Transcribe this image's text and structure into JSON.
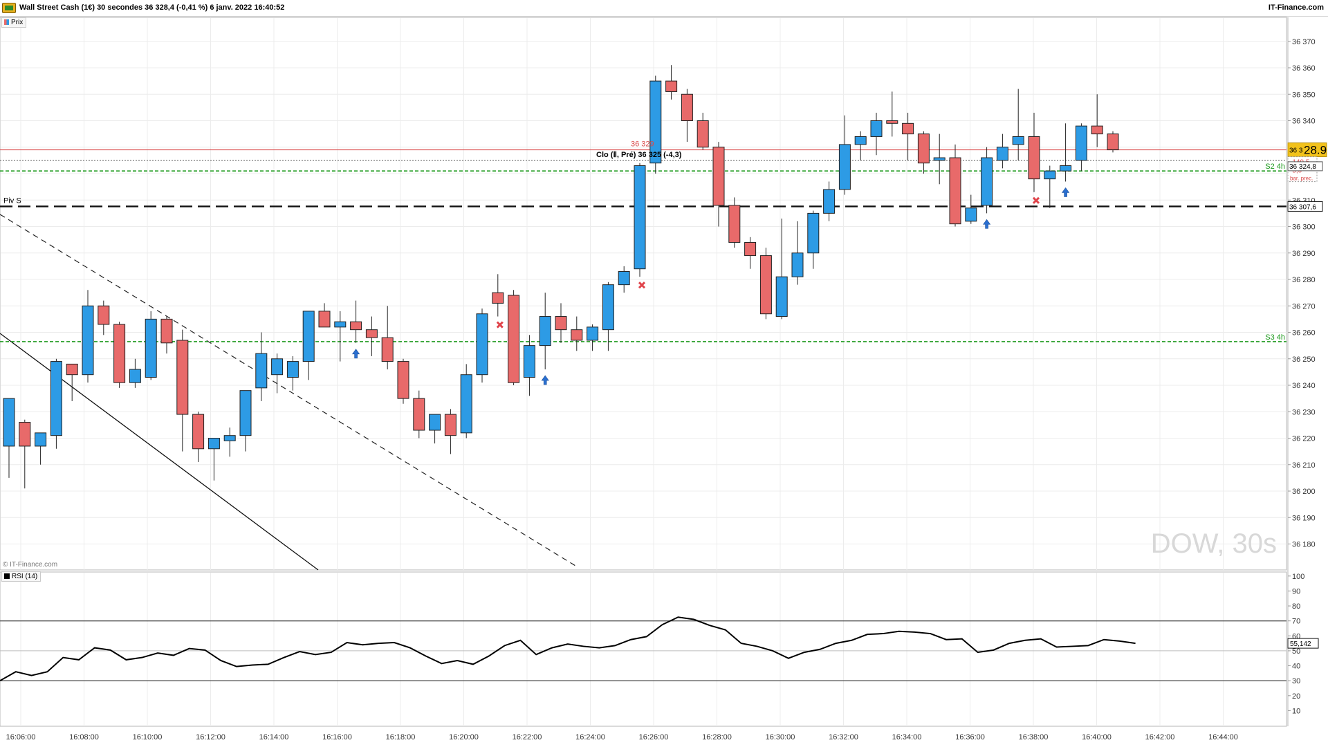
{
  "header": {
    "title": "Wall Street Cash (1€) 30 secondes 36 328,4 (-0,41 %) 6 janv. 2022 16:40:52",
    "brand": "IT-Finance.com",
    "credit": "© IT-Finance.com",
    "watermark": "DOW, 30s"
  },
  "price_panel": {
    "legend": "Prix",
    "current_price_prefix": "36 3",
    "current_price_big": "28.9",
    "current_price_bg": "#f2c21b",
    "diff_label": "-149,5",
    "var_label": "-5,0",
    "prev_label": "bar. prec.",
    "close_tag": "36 324,8",
    "pivot_tag": "36 307,6",
    "level_label_red": "36 329",
    "close_note": "Clo (Ⅱ, Pré) 36 325 (-4,3)",
    "piv_label": "Piv S",
    "s2_label": "S2 4h",
    "s3_label": "S3 4h"
  },
  "rsi_panel": {
    "legend": "RSI (14)",
    "value_tag": "55,142"
  },
  "chart_data": [
    {
      "type": "candlestick",
      "title": "Wall Street Cash (1€) 30 secondes",
      "xlabel": "",
      "ylabel": "",
      "ylim": [
        36170,
        36375
      ],
      "y_ticks": [
        "36 370",
        "36 360",
        "36 350",
        "36 340",
        "36 330",
        "36 320",
        "36 310",
        "36 300",
        "36 290",
        "36 280",
        "36 270",
        "36 260",
        "36 250",
        "36 240",
        "36 230",
        "36 220",
        "36 210",
        "36 200",
        "36 190",
        "36 180"
      ],
      "x_ticks": [
        "16:06:00",
        "16:08:00",
        "16:10:00",
        "16:12:00",
        "16:14:00",
        "16:16:00",
        "16:18:00",
        "16:20:00",
        "16:22:00",
        "16:24:00",
        "16:26:00",
        "16:28:00",
        "16:30:00",
        "16:32:00",
        "16:34:00",
        "16:36:00",
        "16:38:00",
        "16:40:00",
        "16:42:00",
        "16:44:00"
      ],
      "colors": {
        "up": "#2d9be5",
        "down": "#e86a6a"
      },
      "levels": {
        "red_line": 36329,
        "close_dotted": 36325,
        "pivot": 36307.6,
        "s2": 36321,
        "s3": 36256.5
      },
      "candles": [
        {
          "o": 36217,
          "h": 36233,
          "l": 36205,
          "c": 36235
        },
        {
          "o": 36226,
          "h": 36227,
          "l": 36201,
          "c": 36217
        },
        {
          "o": 36217,
          "h": 36222,
          "l": 36210,
          "c": 36222
        },
        {
          "o": 36221,
          "h": 36250,
          "l": 36216,
          "c": 36249
        },
        {
          "o": 36248,
          "h": 36248,
          "l": 36234,
          "c": 36244
        },
        {
          "o": 36244,
          "h": 36276,
          "l": 36241,
          "c": 36270
        },
        {
          "o": 36270,
          "h": 36272,
          "l": 36259,
          "c": 36263
        },
        {
          "o": 36263,
          "h": 36264,
          "l": 36239,
          "c": 36241
        },
        {
          "o": 36241,
          "h": 36250,
          "l": 36239,
          "c": 36246
        },
        {
          "o": 36243,
          "h": 36268,
          "l": 36242,
          "c": 36265
        },
        {
          "o": 36265,
          "h": 36266,
          "l": 36252,
          "c": 36256
        },
        {
          "o": 36257,
          "h": 36261,
          "l": 36215,
          "c": 36229
        },
        {
          "o": 36229,
          "h": 36230,
          "l": 36211,
          "c": 36216
        },
        {
          "o": 36216,
          "h": 36220,
          "l": 36204,
          "c": 36220
        },
        {
          "o": 36219,
          "h": 36224,
          "l": 36213,
          "c": 36221
        },
        {
          "o": 36221,
          "h": 36238,
          "l": 36215,
          "c": 36238
        },
        {
          "o": 36239,
          "h": 36260,
          "l": 36234,
          "c": 36252
        },
        {
          "o": 36244,
          "h": 36252,
          "l": 36237,
          "c": 36250
        },
        {
          "o": 36243,
          "h": 36251,
          "l": 36238,
          "c": 36249
        },
        {
          "o": 36249,
          "h": 36267,
          "l": 36242,
          "c": 36268
        },
        {
          "o": 36268,
          "h": 36271,
          "l": 36263,
          "c": 36262
        },
        {
          "o": 36262,
          "h": 36268,
          "l": 36249,
          "c": 36264
        },
        {
          "o": 36264,
          "h": 36272,
          "l": 36256,
          "c": 36261
        },
        {
          "o": 36261,
          "h": 36266,
          "l": 36251,
          "c": 36258
        },
        {
          "o": 36258,
          "h": 36270,
          "l": 36246,
          "c": 36249
        },
        {
          "o": 36249,
          "h": 36250,
          "l": 36233,
          "c": 36235
        },
        {
          "o": 36235,
          "h": 36238,
          "l": 36220,
          "c": 36223
        },
        {
          "o": 36223,
          "h": 36228,
          "l": 36218,
          "c": 36229
        },
        {
          "o": 36229,
          "h": 36231,
          "l": 36214,
          "c": 36221
        },
        {
          "o": 36222,
          "h": 36248,
          "l": 36220,
          "c": 36244
        },
        {
          "o": 36244,
          "h": 36269,
          "l": 36241,
          "c": 36267
        },
        {
          "o": 36275,
          "h": 36282,
          "l": 36266,
          "c": 36271
        },
        {
          "o": 36274,
          "h": 36276,
          "l": 36240,
          "c": 36241
        },
        {
          "o": 36243,
          "h": 36259,
          "l": 36236,
          "c": 36255
        },
        {
          "o": 36255,
          "h": 36275,
          "l": 36246,
          "c": 36266
        },
        {
          "o": 36266,
          "h": 36271,
          "l": 36256,
          "c": 36261
        },
        {
          "o": 36261,
          "h": 36266,
          "l": 36253,
          "c": 36257
        },
        {
          "o": 36257,
          "h": 36263,
          "l": 36253,
          "c": 36262
        },
        {
          "o": 36261,
          "h": 36279,
          "l": 36253,
          "c": 36278
        },
        {
          "o": 36278,
          "h": 36285,
          "l": 36275,
          "c": 36283
        },
        {
          "o": 36284,
          "h": 36324,
          "l": 36281,
          "c": 36323
        },
        {
          "o": 36324,
          "h": 36357,
          "l": 36320,
          "c": 36355
        },
        {
          "o": 36355,
          "h": 36361,
          "l": 36348,
          "c": 36351
        },
        {
          "o": 36350,
          "h": 36352,
          "l": 36332,
          "c": 36340
        },
        {
          "o": 36340,
          "h": 36343,
          "l": 36329,
          "c": 36330
        },
        {
          "o": 36330,
          "h": 36332,
          "l": 36300,
          "c": 36308
        },
        {
          "o": 36308,
          "h": 36311,
          "l": 36292,
          "c": 36294
        },
        {
          "o": 36294,
          "h": 36296,
          "l": 36284,
          "c": 36289
        },
        {
          "o": 36289,
          "h": 36292,
          "l": 36265,
          "c": 36267
        },
        {
          "o": 36266,
          "h": 36303,
          "l": 36265,
          "c": 36281
        },
        {
          "o": 36281,
          "h": 36302,
          "l": 36278,
          "c": 36290
        },
        {
          "o": 36290,
          "h": 36306,
          "l": 36284,
          "c": 36305
        },
        {
          "o": 36305,
          "h": 36317,
          "l": 36302,
          "c": 36314
        },
        {
          "o": 36314,
          "h": 36342,
          "l": 36312,
          "c": 36331
        },
        {
          "o": 36331,
          "h": 36336,
          "l": 36325,
          "c": 36334
        },
        {
          "o": 36334,
          "h": 36343,
          "l": 36327,
          "c": 36340
        },
        {
          "o": 36340,
          "h": 36351,
          "l": 36334,
          "c": 36339
        },
        {
          "o": 36339,
          "h": 36343,
          "l": 36325,
          "c": 36335
        },
        {
          "o": 36335,
          "h": 36336,
          "l": 36320,
          "c": 36324
        },
        {
          "o": 36325,
          "h": 36335,
          "l": 36316,
          "c": 36326
        },
        {
          "o": 36326,
          "h": 36331,
          "l": 36300,
          "c": 36301
        },
        {
          "o": 36302,
          "h": 36312,
          "l": 36301,
          "c": 36307
        },
        {
          "o": 36308,
          "h": 36330,
          "l": 36305,
          "c": 36326
        },
        {
          "o": 36325,
          "h": 36335,
          "l": 36322,
          "c": 36330
        },
        {
          "o": 36331,
          "h": 36352,
          "l": 36325,
          "c": 36334
        },
        {
          "o": 36334,
          "h": 36343,
          "l": 36313,
          "c": 36318
        },
        {
          "o": 36318,
          "h": 36323,
          "l": 36307,
          "c": 36321
        },
        {
          "o": 36321,
          "h": 36339,
          "l": 36317,
          "c": 36323
        },
        {
          "o": 36325,
          "h": 36339,
          "l": 36321,
          "c": 36338
        },
        {
          "o": 36338,
          "h": 36350,
          "l": 36330,
          "c": 36335
        },
        {
          "o": 36335,
          "h": 36336,
          "l": 36328,
          "c": 36329
        }
      ]
    },
    {
      "type": "line",
      "title": "RSI (14)",
      "ylim": [
        0,
        100
      ],
      "y_ticks": [
        "100",
        "90",
        "80",
        "70",
        "60",
        "50",
        "40",
        "30",
        "20",
        "10"
      ],
      "reference_lines": [
        70,
        50,
        30
      ],
      "series": [
        {
          "name": "RSI (14)",
          "values": [
            30,
            36,
            33.5,
            36,
            45.5,
            44,
            52,
            50.5,
            44,
            45.5,
            48.5,
            47,
            51.5,
            50.5,
            43.5,
            39.5,
            40.5,
            41,
            45.5,
            49.5,
            47.5,
            49,
            55.5,
            54,
            55,
            55.5,
            52,
            46.5,
            41.5,
            43.5,
            41,
            46.5,
            53.5,
            57,
            47.5,
            52,
            54.5,
            53,
            52,
            53.5,
            57.5,
            59.5,
            67.5,
            72.5,
            71,
            67,
            64,
            55,
            53,
            50,
            45,
            49,
            51,
            55,
            57,
            61,
            61.5,
            63,
            62.5,
            61.5,
            57.5,
            58,
            49,
            50.5,
            55,
            57,
            58,
            52.5,
            53,
            53.5,
            57.5,
            56.5,
            55
          ]
        }
      ]
    }
  ]
}
